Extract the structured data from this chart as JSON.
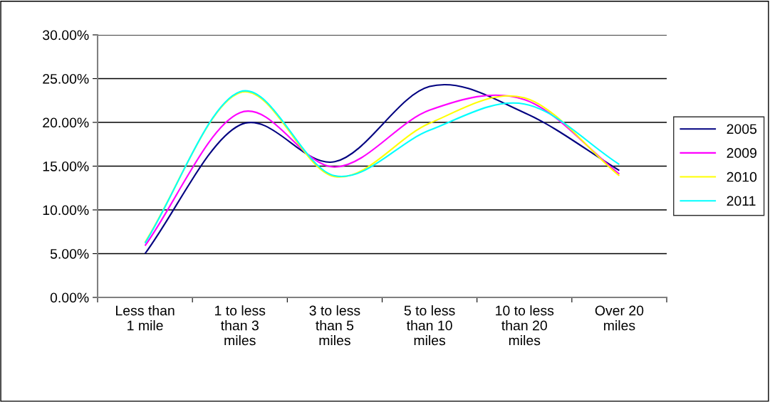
{
  "chart_data": {
    "type": "line",
    "categories": [
      "Less than\n1 mile",
      "1 to less\nthan 3\nmiles",
      "3 to less\nthan 5\nmiles",
      "5 to less\nthan 10\nmiles",
      "10 to less\nthan 20\nmiles",
      "Over 20\nmiles"
    ],
    "series": [
      {
        "name": "2005",
        "color": "#000080",
        "values": [
          5.0,
          19.7,
          15.5,
          24.1,
          21.1,
          14.5
        ]
      },
      {
        "name": "2009",
        "color": "#ff00ff",
        "values": [
          5.9,
          21.1,
          14.9,
          21.4,
          22.6,
          14.1
        ]
      },
      {
        "name": "2010",
        "color": "#ffff00",
        "values": [
          6.3,
          23.4,
          13.8,
          19.9,
          22.8,
          13.9
        ]
      },
      {
        "name": "2011",
        "color": "#00ffff",
        "values": [
          6.2,
          23.5,
          13.9,
          19.1,
          22.1,
          15.2
        ]
      }
    ],
    "ylim": [
      0,
      30
    ],
    "yticks": [
      {
        "value": 0,
        "label": "0.00%"
      },
      {
        "value": 5,
        "label": "5.00%"
      },
      {
        "value": 10,
        "label": "10.00%"
      },
      {
        "value": 15,
        "label": "15.00%"
      },
      {
        "value": 20,
        "label": "20.00%"
      },
      {
        "value": 25,
        "label": "25.00%"
      },
      {
        "value": 30,
        "label": "30.00%"
      }
    ],
    "grid": "y",
    "legend": "right",
    "marker": "none",
    "line_style": "solid"
  }
}
